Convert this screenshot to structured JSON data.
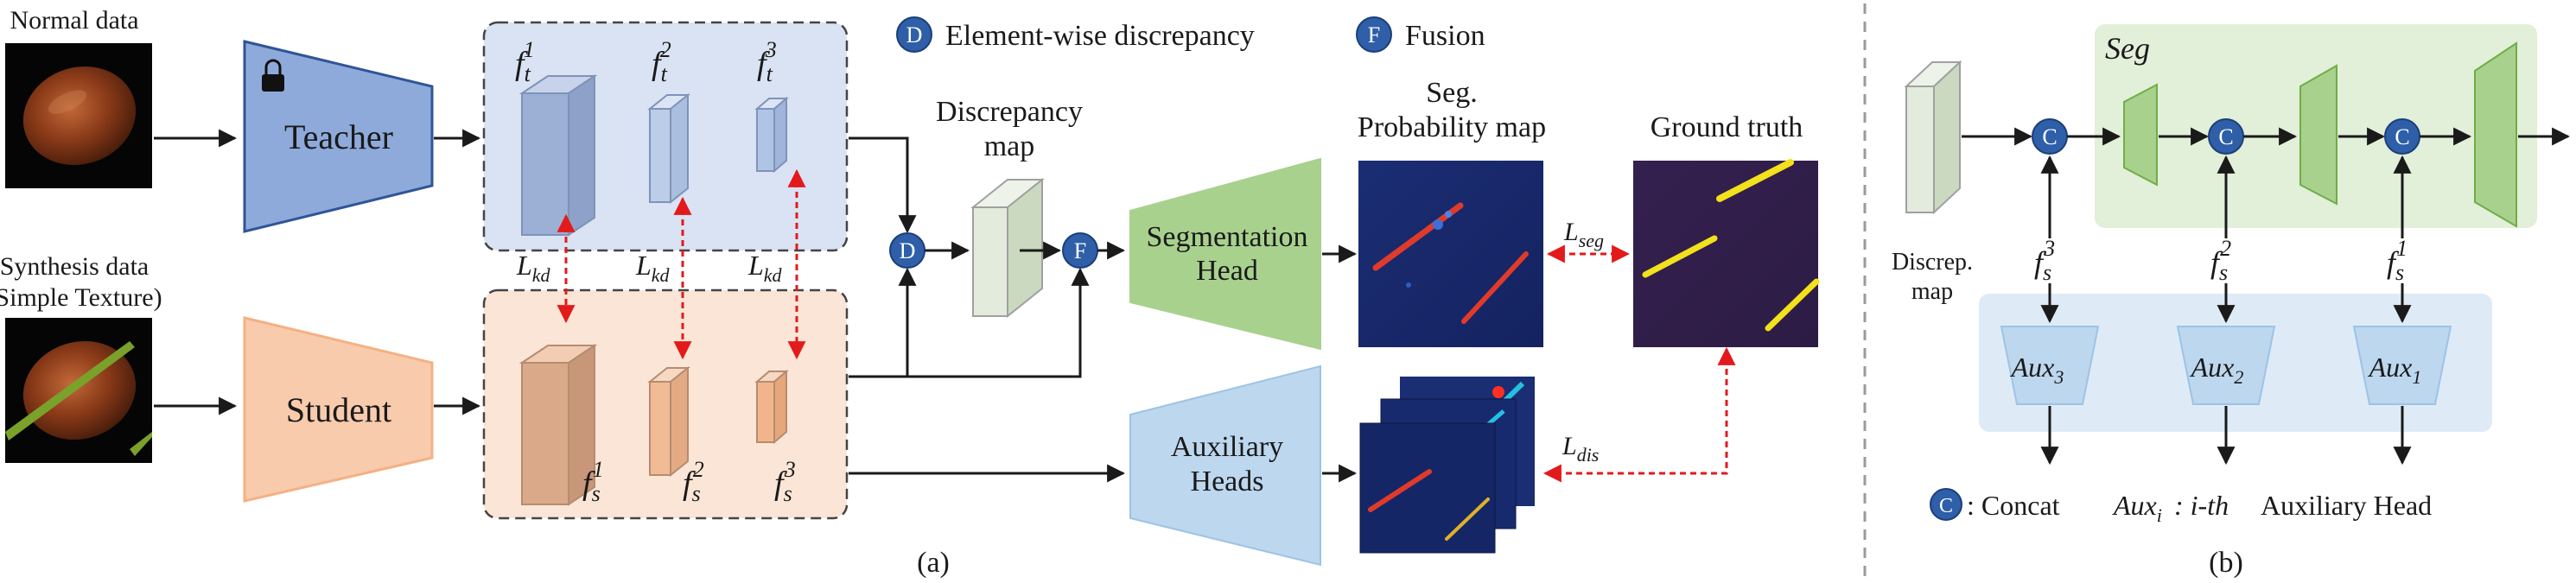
{
  "panel_a": {
    "normal_label": "Normal data",
    "synth_label_1": "Synthesis data",
    "synth_label_2": "(Simple Texture)",
    "teacher_label": "Teacher",
    "student_label": "Student",
    "teacher_features": [
      "f_t^1",
      "f_t^2",
      "f_t^3"
    ],
    "student_features": [
      "f_s^1",
      "f_s^2",
      "f_s^3"
    ],
    "loss_kd": "L_kd",
    "legend_d_symbol": "D",
    "legend_d_text": "Element-wise discrepancy",
    "legend_f_symbol": "F",
    "legend_f_text": "Fusion",
    "discrepancy_title_1": "Discrepancy",
    "discrepancy_title_2": "map",
    "seg_head_1": "Segmentation",
    "seg_head_2": "Head",
    "aux_heads_1": "Auxiliary",
    "aux_heads_2": "Heads",
    "seg_prob_title_1": "Seg.",
    "seg_prob_title_2": "Probability map",
    "ground_truth_title": "Ground truth",
    "loss_seg": "L_seg",
    "loss_dis": "L_dis",
    "caption": "(a)"
  },
  "panel_b": {
    "seg_title": "Seg",
    "concat_symbol": "C",
    "discrep_label_1": "Discrep.",
    "discrep_label_2": "map",
    "features": [
      "f_s^3",
      "f_s^2",
      "f_s^1"
    ],
    "aux_boxes": [
      "Aux_3",
      "Aux_2",
      "Aux_1"
    ],
    "legend_c_text": ": Concat",
    "legend_aux": "Aux_i",
    "legend_aux_desc_1": ": i-th",
    "legend_aux_desc_2": "Auxiliary Head",
    "caption": "(b)"
  },
  "colors": {
    "teacher_fill": "#8eaadb",
    "teacher_stroke": "#2f5597",
    "student_fill": "#f8cbad",
    "student_stroke": "#ed7d31",
    "seg_fill": "#a9d18e",
    "aux_fill": "#bdd7ee",
    "circle_fill": "#2e5fa8",
    "red_dash": "#e31a1c",
    "heat_bg": "#1b2a6b"
  }
}
